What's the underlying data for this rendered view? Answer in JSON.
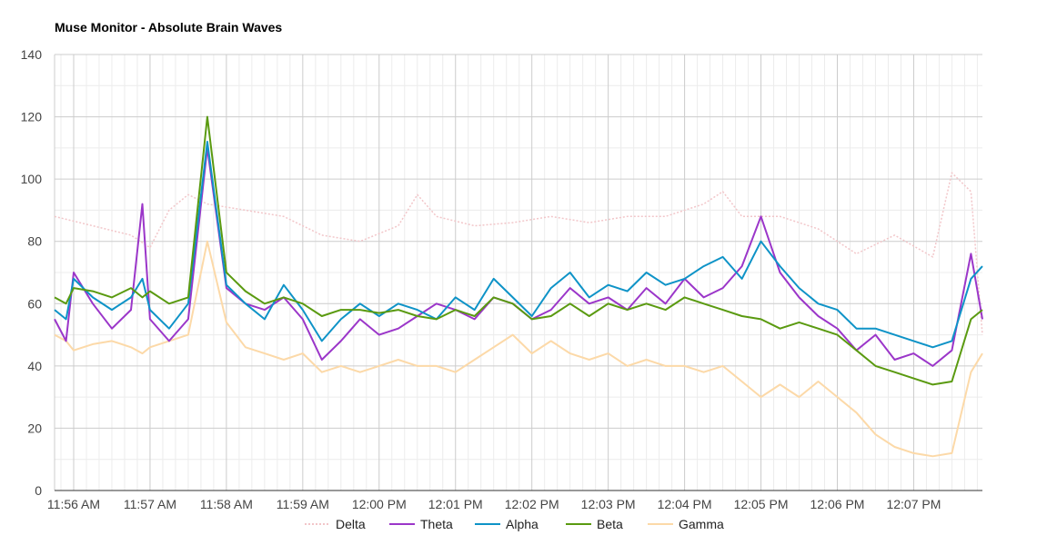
{
  "chart_data": {
    "type": "line",
    "title": "Muse Monitor - Absolute Brain Waves",
    "xlabel": "",
    "ylabel": "",
    "ylim": [
      0,
      140
    ],
    "yticks": [
      "0",
      "20",
      "40",
      "60",
      "80",
      "100",
      "120",
      "140"
    ],
    "x_ticks": [
      "11:56 AM",
      "11:57 AM",
      "11:58 AM",
      "11:59 AM",
      "12:00 PM",
      "12:01 PM",
      "12:02 PM",
      "12:03 PM",
      "12:04 PM",
      "12:05 PM",
      "12:06 PM",
      "12:07 PM"
    ],
    "x_range_minutes": [
      -0.25,
      11.9
    ],
    "grid": true,
    "legend_position": "bottom",
    "series": [
      {
        "name": "Delta",
        "color": "#f2c6c9",
        "dashed": true,
        "x": [
          -0.25,
          0.25,
          0.75,
          1.0,
          1.25,
          1.5,
          1.75,
          2.25,
          2.75,
          3.25,
          3.75,
          4.25,
          4.5,
          4.75,
          5.25,
          5.75,
          6.25,
          6.75,
          7.25,
          7.75,
          8.25,
          8.5,
          8.75,
          9.25,
          9.75,
          10.25,
          10.75,
          11.25,
          11.5,
          11.75,
          11.9
        ],
        "values": [
          88,
          85,
          82,
          78,
          90,
          95,
          92,
          90,
          88,
          82,
          80,
          85,
          95,
          88,
          85,
          86,
          88,
          86,
          88,
          88,
          92,
          96,
          88,
          88,
          84,
          76,
          82,
          75,
          102,
          96,
          50
        ]
      },
      {
        "name": "Theta",
        "color": "#9b36c9",
        "x": [
          -0.25,
          -0.1,
          0.0,
          0.25,
          0.5,
          0.75,
          0.9,
          1.0,
          1.25,
          1.5,
          1.75,
          2.0,
          2.25,
          2.5,
          2.75,
          3.0,
          3.25,
          3.5,
          3.75,
          4.0,
          4.25,
          4.5,
          4.75,
          5.0,
          5.25,
          5.5,
          5.75,
          6.0,
          6.25,
          6.5,
          6.75,
          7.0,
          7.25,
          7.5,
          7.75,
          8.0,
          8.25,
          8.5,
          8.75,
          9.0,
          9.25,
          9.5,
          9.75,
          10.0,
          10.25,
          10.5,
          10.75,
          11.0,
          11.25,
          11.5,
          11.75,
          11.9
        ],
        "values": [
          55,
          48,
          70,
          60,
          52,
          58,
          92,
          55,
          48,
          55,
          110,
          65,
          60,
          58,
          62,
          55,
          42,
          48,
          55,
          50,
          52,
          56,
          60,
          58,
          55,
          62,
          60,
          55,
          58,
          65,
          60,
          62,
          58,
          65,
          60,
          68,
          62,
          65,
          72,
          88,
          70,
          62,
          56,
          52,
          45,
          50,
          42,
          44,
          40,
          45,
          76,
          55
        ]
      },
      {
        "name": "Alpha",
        "color": "#0e93c7",
        "x": [
          -0.25,
          -0.1,
          0.0,
          0.25,
          0.5,
          0.75,
          0.9,
          1.0,
          1.25,
          1.5,
          1.75,
          2.0,
          2.25,
          2.5,
          2.75,
          3.0,
          3.25,
          3.5,
          3.75,
          4.0,
          4.25,
          4.5,
          4.75,
          5.0,
          5.25,
          5.5,
          5.75,
          6.0,
          6.25,
          6.5,
          6.75,
          7.0,
          7.25,
          7.5,
          7.75,
          8.0,
          8.25,
          8.5,
          8.75,
          9.0,
          9.25,
          9.5,
          9.75,
          10.0,
          10.25,
          10.5,
          10.75,
          11.0,
          11.25,
          11.5,
          11.75,
          11.9
        ],
        "values": [
          58,
          55,
          68,
          62,
          58,
          62,
          68,
          58,
          52,
          60,
          112,
          66,
          60,
          55,
          66,
          58,
          48,
          55,
          60,
          56,
          60,
          58,
          55,
          62,
          58,
          68,
          62,
          56,
          65,
          70,
          62,
          66,
          64,
          70,
          66,
          68,
          72,
          75,
          68,
          80,
          72,
          65,
          60,
          58,
          52,
          52,
          50,
          48,
          46,
          48,
          68,
          72
        ]
      },
      {
        "name": "Beta",
        "color": "#5a9a10",
        "x": [
          -0.25,
          -0.1,
          0.0,
          0.25,
          0.5,
          0.75,
          0.9,
          1.0,
          1.25,
          1.5,
          1.75,
          2.0,
          2.25,
          2.5,
          2.75,
          3.0,
          3.25,
          3.5,
          3.75,
          4.0,
          4.25,
          4.5,
          4.75,
          5.0,
          5.25,
          5.5,
          5.75,
          6.0,
          6.25,
          6.5,
          6.75,
          7.0,
          7.25,
          7.5,
          7.75,
          8.0,
          8.25,
          8.5,
          8.75,
          9.0,
          9.25,
          9.5,
          9.75,
          10.0,
          10.25,
          10.5,
          10.75,
          11.0,
          11.25,
          11.5,
          11.75,
          11.9
        ],
        "values": [
          62,
          60,
          65,
          64,
          62,
          65,
          62,
          64,
          60,
          62,
          120,
          70,
          64,
          60,
          62,
          60,
          56,
          58,
          58,
          57,
          58,
          56,
          55,
          58,
          56,
          62,
          60,
          55,
          56,
          60,
          56,
          60,
          58,
          60,
          58,
          62,
          60,
          58,
          56,
          55,
          52,
          54,
          52,
          50,
          45,
          40,
          38,
          36,
          34,
          35,
          55,
          58
        ]
      },
      {
        "name": "Gamma",
        "color": "#fcd9a8",
        "x": [
          -0.25,
          -0.1,
          0.0,
          0.25,
          0.5,
          0.75,
          0.9,
          1.0,
          1.25,
          1.5,
          1.75,
          2.0,
          2.25,
          2.5,
          2.75,
          3.0,
          3.25,
          3.5,
          3.75,
          4.0,
          4.25,
          4.5,
          4.75,
          5.0,
          5.25,
          5.5,
          5.75,
          6.0,
          6.25,
          6.5,
          6.75,
          7.0,
          7.25,
          7.5,
          7.75,
          8.0,
          8.25,
          8.5,
          8.75,
          9.0,
          9.25,
          9.5,
          9.75,
          10.0,
          10.25,
          10.5,
          10.75,
          11.0,
          11.25,
          11.5,
          11.75,
          11.9
        ],
        "values": [
          50,
          48,
          45,
          47,
          48,
          46,
          44,
          46,
          48,
          50,
          80,
          54,
          46,
          44,
          42,
          44,
          38,
          40,
          38,
          40,
          42,
          40,
          40,
          38,
          42,
          46,
          50,
          44,
          48,
          44,
          42,
          44,
          40,
          42,
          40,
          40,
          38,
          40,
          35,
          30,
          34,
          30,
          35,
          30,
          25,
          18,
          14,
          12,
          11,
          12,
          38,
          44
        ]
      }
    ]
  }
}
